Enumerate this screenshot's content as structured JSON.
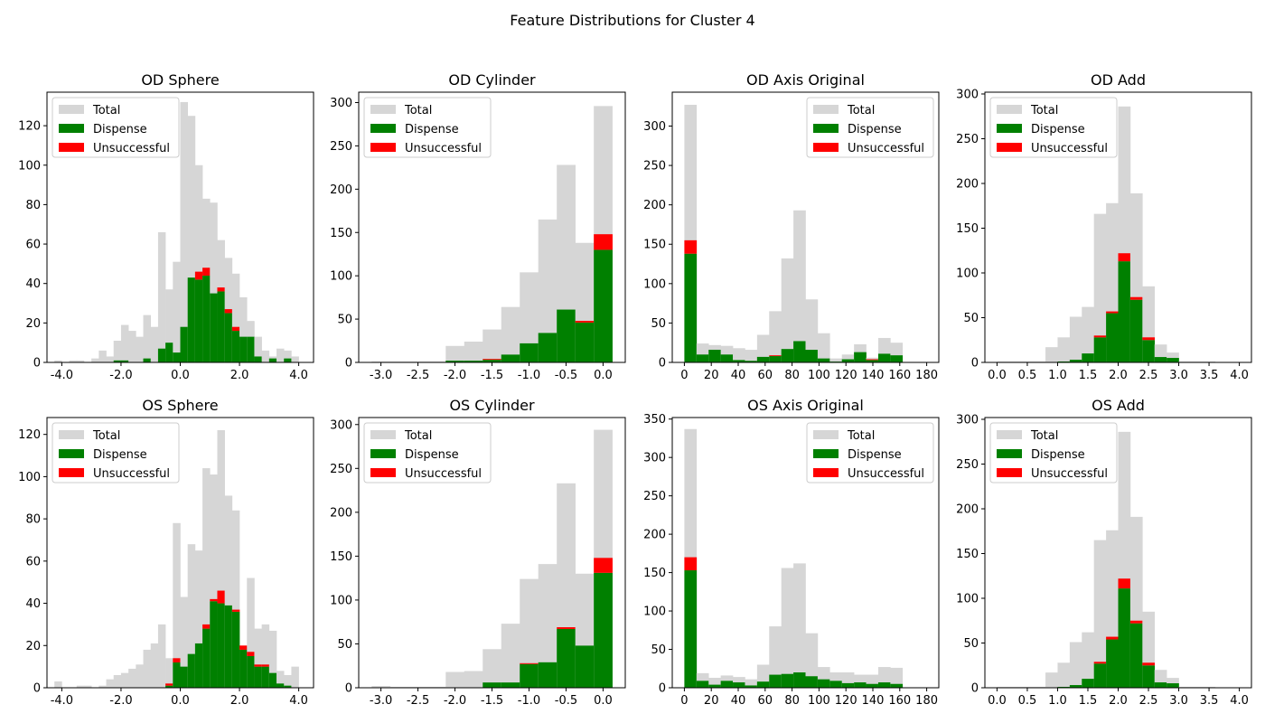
{
  "figure_title": "Feature Distributions for Cluster 4",
  "colors": {
    "total": "#d6d6d6",
    "dispense": "#008000",
    "unsuccessful": "#ff0000"
  },
  "chart_data": [
    {
      "type": "bar",
      "title": "OD Sphere",
      "xlim": [
        -4.5,
        4.5
      ],
      "ylim": [
        0,
        137
      ],
      "xticks": [
        -4,
        -2,
        0,
        2,
        4
      ],
      "xtick_labels": [
        "-4.0",
        "-2.0",
        "0.0",
        "2.0",
        "4.0"
      ],
      "yticks": [
        0,
        20,
        40,
        60,
        80,
        100,
        120
      ],
      "ytick_labels": [
        "0",
        "20",
        "40",
        "60",
        "80",
        "100",
        "120"
      ],
      "legend_position": "upper-left",
      "legend": [
        "Total",
        "Dispense",
        "Unsuccessful"
      ],
      "bin_edges": [
        -4.5,
        -4.25,
        -4.0,
        -3.75,
        -3.5,
        -3.25,
        -3.0,
        -2.75,
        -2.5,
        -2.25,
        -2.0,
        -1.75,
        -1.5,
        -1.25,
        -1.0,
        -0.75,
        -0.5,
        -0.25,
        0.0,
        0.25,
        0.5,
        0.75,
        1.0,
        1.25,
        1.5,
        1.75,
        2.0,
        2.25,
        2.5,
        2.75,
        3.0,
        3.25,
        3.5,
        3.75,
        4.0,
        4.25
      ],
      "series": [
        {
          "name": "Total",
          "values": [
            0,
            1,
            0,
            1,
            1,
            0,
            2,
            6,
            3,
            11,
            19,
            16,
            13,
            24,
            18,
            66,
            37,
            51,
            132,
            125,
            100,
            83,
            81,
            62,
            53,
            45,
            33,
            21,
            13,
            6,
            3,
            7,
            6,
            3,
            0
          ]
        },
        {
          "name": "Dispense",
          "values": [
            0,
            0,
            0,
            0,
            0,
            0,
            0,
            0,
            0,
            1,
            1,
            0,
            0,
            2,
            0,
            7,
            10,
            5,
            18,
            43,
            42,
            44,
            35,
            36,
            25,
            16,
            13,
            13,
            3,
            0,
            2,
            0,
            2,
            0,
            0
          ]
        },
        {
          "name": "Unsuccessful",
          "values": [
            0,
            0,
            0,
            0,
            0,
            0,
            0,
            0,
            0,
            0,
            0,
            0,
            0,
            0,
            0,
            0,
            0,
            0,
            0,
            0,
            4,
            4,
            0,
            2,
            2,
            2,
            0,
            0,
            0,
            0,
            0,
            0,
            0,
            0,
            0
          ]
        }
      ]
    },
    {
      "type": "bar",
      "title": "OD Cylinder",
      "xlim": [
        -3.3,
        0.3
      ],
      "ylim": [
        0,
        312
      ],
      "xticks": [
        -3,
        -2.5,
        -2,
        -1.5,
        -1,
        -0.5,
        0
      ],
      "xtick_labels": [
        "-3.0",
        "-2.5",
        "-2.0",
        "-1.5",
        "-1.0",
        "-0.5",
        "0.0"
      ],
      "yticks": [
        0,
        50,
        100,
        150,
        200,
        250,
        300
      ],
      "ytick_labels": [
        "0",
        "50",
        "100",
        "150",
        "200",
        "250",
        "300"
      ],
      "legend_position": "upper-left",
      "legend": [
        "Total",
        "Dispense",
        "Unsuccessful"
      ],
      "bin_edges": [
        -3.125,
        -2.875,
        -2.625,
        -2.375,
        -2.125,
        -1.875,
        -1.625,
        -1.375,
        -1.125,
        -0.875,
        -0.625,
        -0.375,
        -0.125,
        0.125
      ],
      "series": [
        {
          "name": "Total",
          "values": [
            1,
            1,
            1,
            1,
            19,
            24,
            38,
            64,
            104,
            165,
            228,
            138,
            296
          ]
        },
        {
          "name": "Dispense",
          "values": [
            0,
            0,
            0,
            0,
            2,
            2,
            3,
            9,
            22,
            34,
            61,
            46,
            130
          ]
        },
        {
          "name": "Unsuccessful",
          "values": [
            0,
            0,
            0,
            0,
            0,
            0,
            1,
            0,
            0,
            0,
            0,
            2,
            18
          ]
        }
      ]
    },
    {
      "type": "bar",
      "title": "OD Axis Original",
      "xlim": [
        -9,
        189
      ],
      "ylim": [
        0,
        343
      ],
      "xticks": [
        0,
        20,
        40,
        60,
        80,
        100,
        120,
        140,
        160,
        180
      ],
      "xtick_labels": [
        "0",
        "20",
        "40",
        "60",
        "80",
        "100",
        "120",
        "140",
        "160",
        "180"
      ],
      "yticks": [
        0,
        50,
        100,
        150,
        200,
        250,
        300
      ],
      "ytick_labels": [
        "0",
        "50",
        "100",
        "150",
        "200",
        "250",
        "300"
      ],
      "legend_position": "upper-right",
      "legend": [
        "Total",
        "Dispense",
        "Unsuccessful"
      ],
      "bin_edges": [
        0,
        9,
        18,
        27,
        36,
        45,
        54,
        63,
        72,
        81,
        90,
        99,
        108,
        117,
        126,
        135,
        144,
        153,
        162,
        171,
        180
      ],
      "series": [
        {
          "name": "Total",
          "values": [
            327,
            24,
            22,
            21,
            18,
            16,
            35,
            65,
            132,
            193,
            80,
            37,
            5,
            10,
            23,
            6,
            31,
            25,
            0,
            0
          ]
        },
        {
          "name": "Dispense",
          "values": [
            138,
            10,
            16,
            10,
            3,
            2,
            7,
            8,
            17,
            27,
            16,
            5,
            1,
            4,
            13,
            3,
            11,
            9,
            0,
            0
          ]
        },
        {
          "name": "Unsuccessful",
          "values": [
            17,
            0,
            0,
            0,
            0,
            0,
            0,
            1,
            0,
            0,
            0,
            0,
            0,
            0,
            0,
            1,
            0,
            0,
            0,
            0
          ]
        }
      ]
    },
    {
      "type": "bar",
      "title": "OD Add",
      "xlim": [
        -0.2,
        4.2
      ],
      "ylim": [
        0,
        302
      ],
      "xticks": [
        0,
        0.5,
        1,
        1.5,
        2,
        2.5,
        3,
        3.5,
        4
      ],
      "xtick_labels": [
        "0.0",
        "0.5",
        "1.0",
        "1.5",
        "2.0",
        "2.5",
        "3.0",
        "3.5",
        "4.0"
      ],
      "yticks": [
        0,
        50,
        100,
        150,
        200,
        250,
        300
      ],
      "ytick_labels": [
        "0",
        "50",
        "100",
        "150",
        "200",
        "250",
        "300"
      ],
      "legend_position": "upper-left",
      "legend": [
        "Total",
        "Dispense",
        "Unsuccessful"
      ],
      "bin_edges": [
        0.0,
        0.2,
        0.4,
        0.6,
        0.8,
        1.0,
        1.2,
        1.4,
        1.6,
        1.8,
        2.0,
        2.2,
        2.4,
        2.6,
        2.8,
        3.0,
        3.2,
        3.4,
        3.6,
        3.8,
        4.0
      ],
      "series": [
        {
          "name": "Total",
          "values": [
            1,
            1,
            1,
            1,
            17,
            28,
            51,
            62,
            166,
            178,
            286,
            189,
            85,
            20,
            11,
            1,
            1,
            1,
            0,
            0
          ]
        },
        {
          "name": "Dispense",
          "values": [
            0,
            0,
            0,
            0,
            0,
            1,
            3,
            10,
            28,
            55,
            113,
            70,
            25,
            6,
            5,
            0,
            0,
            0,
            0,
            0
          ]
        },
        {
          "name": "Unsuccessful",
          "values": [
            0,
            0,
            0,
            0,
            0,
            0,
            0,
            0,
            2,
            2,
            9,
            3,
            3,
            0,
            0,
            0,
            0,
            0,
            0,
            0
          ]
        }
      ]
    },
    {
      "type": "bar",
      "title": "OS Sphere",
      "xlim": [
        -4.5,
        4.5
      ],
      "ylim": [
        0,
        128
      ],
      "xticks": [
        -4,
        -2,
        0,
        2,
        4
      ],
      "xtick_labels": [
        "-4.0",
        "-2.0",
        "0.0",
        "2.0",
        "4.0"
      ],
      "yticks": [
        0,
        20,
        40,
        60,
        80,
        100,
        120
      ],
      "ytick_labels": [
        "0",
        "20",
        "40",
        "60",
        "80",
        "100",
        "120"
      ],
      "legend_position": "upper-left",
      "legend": [
        "Total",
        "Dispense",
        "Unsuccessful"
      ],
      "bin_edges": [
        -4.25,
        -4.0,
        -3.75,
        -3.5,
        -3.25,
        -3.0,
        -2.75,
        -2.5,
        -2.25,
        -2.0,
        -1.75,
        -1.5,
        -1.25,
        -1.0,
        -0.75,
        -0.5,
        -0.25,
        0.0,
        0.25,
        0.5,
        0.75,
        1.0,
        1.25,
        1.5,
        1.75,
        2.0,
        2.25,
        2.5,
        2.75,
        3.0,
        3.25,
        3.5,
        3.75,
        4.0,
        4.25
      ],
      "series": [
        {
          "name": "Total",
          "values": [
            3,
            0,
            0,
            1,
            1,
            0,
            1,
            4,
            6,
            7,
            9,
            11,
            18,
            21,
            30,
            14,
            78,
            43,
            68,
            65,
            104,
            101,
            122,
            91,
            84,
            19,
            52,
            28,
            30,
            27,
            8,
            6,
            10,
            0
          ]
        },
        {
          "name": "Dispense",
          "values": [
            0,
            0,
            0,
            0,
            0,
            0,
            0,
            0,
            0,
            0,
            0,
            0,
            0,
            0,
            0,
            1,
            12,
            10,
            16,
            21,
            28,
            41,
            40,
            39,
            36,
            18,
            15,
            10,
            10,
            7,
            2,
            1,
            0,
            0
          ]
        },
        {
          "name": "Unsuccessful",
          "values": [
            0,
            0,
            0,
            0,
            0,
            0,
            0,
            0,
            0,
            0,
            0,
            0,
            0,
            0,
            0,
            1,
            2,
            0,
            0,
            0,
            2,
            1,
            6,
            0,
            1,
            2,
            2,
            1,
            1,
            0,
            0,
            0,
            0,
            0
          ]
        }
      ]
    },
    {
      "type": "bar",
      "title": "OS Cylinder",
      "xlim": [
        -3.3,
        0.3
      ],
      "ylim": [
        0,
        308
      ],
      "xticks": [
        -3,
        -2.5,
        -2,
        -1.5,
        -1,
        -0.5,
        0
      ],
      "xtick_labels": [
        "-3.0",
        "-2.5",
        "-2.0",
        "-1.5",
        "-1.0",
        "-0.5",
        "0.0"
      ],
      "yticks": [
        0,
        50,
        100,
        150,
        200,
        250,
        300
      ],
      "ytick_labels": [
        "0",
        "50",
        "100",
        "150",
        "200",
        "250",
        "300"
      ],
      "legend_position": "upper-left",
      "legend": [
        "Total",
        "Dispense",
        "Unsuccessful"
      ],
      "bin_edges": [
        -3.125,
        -2.875,
        -2.625,
        -2.375,
        -2.125,
        -1.875,
        -1.625,
        -1.375,
        -1.125,
        -0.875,
        -0.625,
        -0.375,
        -0.125,
        0.125
      ],
      "series": [
        {
          "name": "Total",
          "values": [
            2,
            1,
            1,
            1,
            18,
            19,
            44,
            73,
            124,
            141,
            233,
            130,
            294
          ]
        },
        {
          "name": "Dispense",
          "values": [
            0,
            0,
            0,
            0,
            0,
            0,
            6,
            6,
            27,
            29,
            67,
            48,
            131
          ]
        },
        {
          "name": "Unsuccessful",
          "values": [
            0,
            0,
            0,
            0,
            0,
            0,
            0,
            0,
            1,
            0,
            2,
            0,
            17
          ]
        }
      ]
    },
    {
      "type": "bar",
      "title": "OS Axis Original",
      "xlim": [
        -9,
        189
      ],
      "ylim": [
        0,
        352
      ],
      "xticks": [
        0,
        20,
        40,
        60,
        80,
        100,
        120,
        140,
        160,
        180
      ],
      "xtick_labels": [
        "0",
        "20",
        "40",
        "60",
        "80",
        "100",
        "120",
        "140",
        "160",
        "180"
      ],
      "yticks": [
        0,
        50,
        100,
        150,
        200,
        250,
        300,
        350
      ],
      "ytick_labels": [
        "0",
        "50",
        "100",
        "150",
        "200",
        "250",
        "300",
        "350"
      ],
      "legend_position": "upper-right",
      "legend": [
        "Total",
        "Dispense",
        "Unsuccessful"
      ],
      "bin_edges": [
        0,
        9,
        18,
        27,
        36,
        45,
        54,
        63,
        72,
        81,
        90,
        99,
        108,
        117,
        126,
        135,
        144,
        153,
        162,
        171,
        180
      ],
      "series": [
        {
          "name": "Total",
          "values": [
            337,
            19,
            13,
            16,
            14,
            11,
            30,
            80,
            156,
            162,
            71,
            27,
            20,
            20,
            17,
            17,
            27,
            26,
            0,
            0
          ]
        },
        {
          "name": "Dispense",
          "values": [
            153,
            9,
            4,
            9,
            7,
            3,
            8,
            17,
            18,
            20,
            15,
            11,
            9,
            6,
            7,
            5,
            7,
            5,
            0,
            0
          ]
        },
        {
          "name": "Unsuccessful",
          "values": [
            17,
            0,
            0,
            0,
            0,
            0,
            0,
            0,
            0,
            0,
            0,
            0,
            0,
            0,
            0,
            0,
            0,
            0,
            0,
            0
          ]
        }
      ]
    },
    {
      "type": "bar",
      "title": "OS Add",
      "xlim": [
        -0.2,
        4.2
      ],
      "ylim": [
        0,
        302
      ],
      "xticks": [
        0,
        0.5,
        1,
        1.5,
        2,
        2.5,
        3,
        3.5,
        4
      ],
      "xtick_labels": [
        "0.0",
        "0.5",
        "1.0",
        "1.5",
        "2.0",
        "2.5",
        "3.0",
        "3.5",
        "4.0"
      ],
      "yticks": [
        0,
        50,
        100,
        150,
        200,
        250,
        300
      ],
      "ytick_labels": [
        "0",
        "50",
        "100",
        "150",
        "200",
        "250",
        "300"
      ],
      "legend_position": "upper-left",
      "legend": [
        "Total",
        "Dispense",
        "Unsuccessful"
      ],
      "bin_edges": [
        0.0,
        0.2,
        0.4,
        0.6,
        0.8,
        1.0,
        1.2,
        1.4,
        1.6,
        1.8,
        2.0,
        2.2,
        2.4,
        2.6,
        2.8,
        3.0,
        3.2,
        3.4,
        3.6,
        3.8,
        4.0
      ],
      "series": [
        {
          "name": "Total",
          "values": [
            1,
            1,
            1,
            1,
            17,
            28,
            51,
            62,
            165,
            176,
            286,
            191,
            85,
            20,
            11,
            1,
            1,
            1,
            0,
            0
          ]
        },
        {
          "name": "Dispense",
          "values": [
            0,
            0,
            0,
            0,
            0,
            1,
            3,
            10,
            27,
            54,
            111,
            72,
            25,
            6,
            5,
            0,
            0,
            0,
            0,
            0
          ]
        },
        {
          "name": "Unsuccessful",
          "values": [
            0,
            0,
            0,
            0,
            0,
            0,
            0,
            0,
            2,
            3,
            11,
            3,
            3,
            0,
            0,
            0,
            0,
            0,
            0,
            0
          ]
        }
      ]
    }
  ]
}
